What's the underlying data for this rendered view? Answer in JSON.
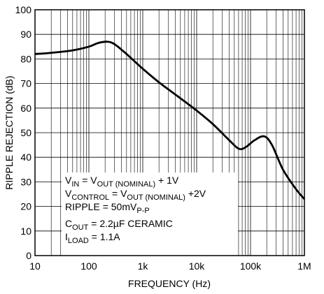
{
  "chart_data": {
    "type": "line",
    "xlabel": "FREQUENCY (Hz)",
    "ylabel": "RIPPLE REJECTION (dB)",
    "log_x": true,
    "grid": true,
    "color": "#000000",
    "x": [
      10,
      20,
      50,
      100,
      150,
      220,
      300,
      500,
      1000,
      2000,
      5000,
      10000,
      20000,
      40000,
      60000,
      80000,
      120000,
      180000,
      250000,
      400000,
      700000,
      1000000
    ],
    "values": [
      82,
      82.5,
      83.5,
      85,
      86.5,
      87,
      86,
      82,
      76,
      70.5,
      64,
      59,
      53.5,
      47,
      43.5,
      44,
      47,
      48.5,
      45,
      35,
      27,
      23
    ],
    "xlim": [
      10,
      1000000
    ],
    "ylim": [
      0,
      100
    ],
    "xticks": [
      10,
      100,
      {
        "value": 1000,
        "label": "1k"
      },
      {
        "value": 10000,
        "label": "10k"
      },
      {
        "value": 100000,
        "label": "100k"
      },
      {
        "value": 1000000,
        "label": "1M"
      }
    ],
    "xminorticks": [
      20,
      30,
      40,
      50,
      60,
      70,
      80,
      90,
      200,
      300,
      400,
      500,
      600,
      700,
      800,
      900,
      2000,
      3000,
      4000,
      5000,
      6000,
      7000,
      8000,
      9000,
      20000,
      30000,
      40000,
      50000,
      60000,
      70000,
      80000,
      90000,
      200000,
      300000,
      400000,
      500000,
      600000,
      700000,
      800000,
      900000
    ],
    "yticks": [
      0,
      10,
      20,
      30,
      40,
      50,
      60,
      70,
      80,
      90,
      100
    ],
    "annotation": [
      [
        {
          "text": "V"
        },
        {
          "text": "IN",
          "sub": true
        },
        {
          "text": " = V"
        },
        {
          "text": "OUT (NOMINAL)",
          "sub": true
        },
        {
          "text": " + 1V"
        }
      ],
      [
        {
          "text": "V"
        },
        {
          "text": "CONTROL",
          "sub": true
        },
        {
          "text": " = V"
        },
        {
          "text": "OUT (NOMINAL)",
          "sub": true
        },
        {
          "text": " +2V"
        }
      ],
      [
        {
          "text": "RIPPLE = 50mV"
        },
        {
          "text": "P-P",
          "sub": true
        }
      ],
      [
        {
          "text": "C"
        },
        {
          "text": "OUT",
          "sub": true
        },
        {
          "text": " = 2.2µF CERAMIC"
        }
      ],
      [
        {
          "text": "I"
        },
        {
          "text": "LOAD",
          "sub": true
        },
        {
          "text": " = 1.1A"
        }
      ]
    ]
  }
}
